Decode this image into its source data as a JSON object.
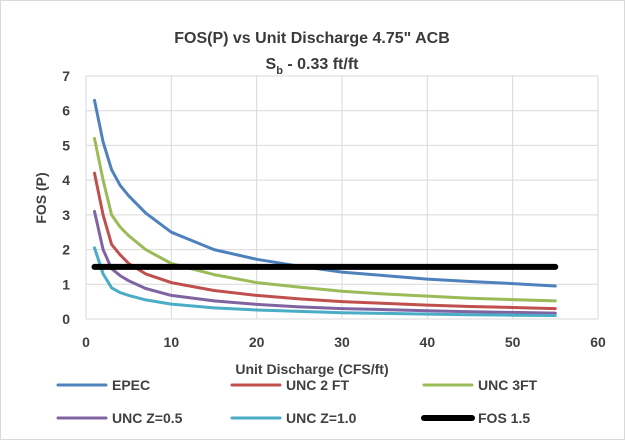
{
  "chart_data": {
    "type": "line",
    "title": "FOS(P) vs Unit Discharge 4.75\" ACB",
    "subtitle_main": "S",
    "subtitle_sub": "b",
    "subtitle_rest": " - 0.33 ft/ft",
    "xlabel": "Unit Discharge (CFS/ft)",
    "ylabel": "FOS (P)",
    "xlim": [
      0,
      60
    ],
    "ylim": [
      0,
      7
    ],
    "xticks": [
      0,
      10,
      20,
      30,
      40,
      50,
      60
    ],
    "yticks": [
      0,
      1,
      2,
      3,
      4,
      5,
      6,
      7
    ],
    "grid": true,
    "legend_position": "bottom",
    "series": [
      {
        "name": "EPEC",
        "color": "#4f81bd",
        "x": [
          1,
          2,
          3,
          4,
          5,
          7,
          10,
          14,
          15,
          20,
          25,
          30,
          35,
          40,
          45,
          50,
          55
        ],
        "y": [
          6.3,
          5.1,
          4.3,
          3.85,
          3.55,
          3.05,
          2.5,
          2.1,
          2.0,
          1.72,
          1.52,
          1.35,
          1.25,
          1.15,
          1.08,
          1.02,
          0.95
        ]
      },
      {
        "name": "UNC 2 FT",
        "color": "#c0504d",
        "x": [
          1,
          2,
          3,
          4,
          5,
          7,
          10,
          15,
          20,
          25,
          30,
          35,
          40,
          45,
          50,
          55
        ],
        "y": [
          4.2,
          3.0,
          2.15,
          1.85,
          1.6,
          1.3,
          1.05,
          0.82,
          0.68,
          0.58,
          0.5,
          0.45,
          0.4,
          0.36,
          0.33,
          0.3
        ]
      },
      {
        "name": "UNC 3FT",
        "color": "#9bbb59",
        "x": [
          1,
          2,
          3,
          4,
          5,
          7,
          10,
          15,
          20,
          25,
          30,
          35,
          40,
          45,
          50,
          55
        ],
        "y": [
          5.2,
          4.0,
          3.0,
          2.65,
          2.4,
          2.0,
          1.6,
          1.28,
          1.05,
          0.92,
          0.8,
          0.72,
          0.66,
          0.6,
          0.56,
          0.52
        ]
      },
      {
        "name": "UNC Z=0.5",
        "color": "#8064a2",
        "x": [
          1,
          2,
          3,
          4,
          5,
          7,
          10,
          15,
          20,
          25,
          30,
          35,
          40,
          45,
          50,
          55
        ],
        "y": [
          3.1,
          2.0,
          1.45,
          1.25,
          1.1,
          0.88,
          0.68,
          0.52,
          0.42,
          0.35,
          0.3,
          0.27,
          0.24,
          0.21,
          0.19,
          0.17
        ]
      },
      {
        "name": "UNC Z=1.0",
        "color": "#4bacc6",
        "x": [
          1,
          2,
          3,
          4,
          5,
          7,
          10,
          15,
          20,
          25,
          30,
          35,
          40,
          45,
          50,
          55
        ],
        "y": [
          2.05,
          1.3,
          0.9,
          0.76,
          0.68,
          0.55,
          0.43,
          0.32,
          0.26,
          0.22,
          0.18,
          0.16,
          0.14,
          0.12,
          0.11,
          0.1
        ]
      },
      {
        "name": "FOS 1.5",
        "color": "#000000",
        "x": [
          1,
          55
        ],
        "y": [
          1.5,
          1.5
        ]
      }
    ]
  }
}
